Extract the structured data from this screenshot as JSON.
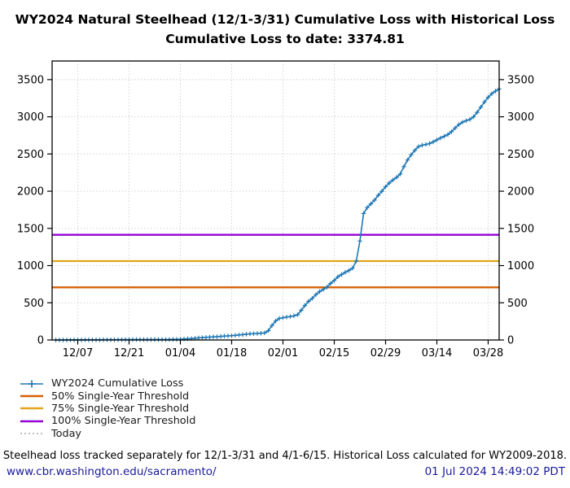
{
  "title": {
    "line1": "WY2024 Natural Steelhead (12/1-3/31) Cumulative Loss with Historical Loss",
    "line2": "Cumulative Loss to date: 3374.81"
  },
  "chart_data": {
    "type": "line",
    "title": "WY2024 Natural Steelhead (12/1-3/31) Cumulative Loss with Historical Loss",
    "subtitle": "Cumulative Loss to date: 3374.81",
    "cumulative_loss_to_date": 3374.81,
    "x_start_date": "12/01",
    "x_end_date": "03/31",
    "x_tick_labels": [
      "12/07",
      "12/21",
      "01/04",
      "01/18",
      "02/01",
      "02/15",
      "02/29",
      "03/14",
      "03/28"
    ],
    "x_tick_days": [
      6,
      20,
      34,
      48,
      62,
      76,
      90,
      104,
      118
    ],
    "y_ticks": [
      0,
      500,
      1000,
      1500,
      2000,
      2500,
      3000,
      3500
    ],
    "ylim": [
      0,
      3500
    ],
    "grid": true,
    "legend_position": "below-left",
    "series": [
      {
        "name": "WY2024 Cumulative Loss",
        "color": "#1f77b4",
        "marker": "plus",
        "day_values": [
          0,
          0,
          0,
          0,
          1,
          1,
          1,
          1,
          2,
          2,
          2,
          2,
          2,
          3,
          3,
          3,
          3,
          3,
          4,
          4,
          4,
          4,
          5,
          5,
          5,
          5,
          5,
          6,
          6,
          6,
          6,
          7,
          8,
          9,
          10,
          13,
          16,
          19,
          23,
          28,
          32,
          35,
          38,
          41,
          44,
          48,
          52,
          55,
          58,
          62,
          68,
          72,
          78,
          82,
          85,
          88,
          91,
          95,
          125,
          195,
          255,
          290,
          300,
          308,
          315,
          325,
          340,
          400,
          465,
          520,
          560,
          610,
          650,
          680,
          710,
          760,
          800,
          850,
          880,
          910,
          935,
          965,
          1060,
          1330,
          1700,
          1780,
          1830,
          1880,
          1945,
          2000,
          2060,
          2110,
          2150,
          2185,
          2230,
          2330,
          2420,
          2490,
          2550,
          2600,
          2618,
          2628,
          2640,
          2662,
          2690,
          2715,
          2738,
          2762,
          2800,
          2850,
          2895,
          2928,
          2948,
          2965,
          3000,
          3060,
          3130,
          3200,
          3262,
          3310,
          3345,
          3374.81
        ]
      }
    ],
    "thresholds": [
      {
        "name": "50% Single-Year Threshold",
        "value": 707,
        "color": "#d95f02"
      },
      {
        "name": "75% Single-Year Threshold",
        "value": 1060.5,
        "color": "#e0a51e"
      },
      {
        "name": "100% Single-Year Threshold",
        "value": 1414,
        "color": "#9400d3"
      }
    ],
    "today_line": {
      "label": "Today",
      "style": "dotted",
      "color": "#999999",
      "in_plot_range": false
    }
  },
  "legend": {
    "items": [
      {
        "label": "WY2024 Cumulative Loss",
        "color": "#1f77b4",
        "style": "plus-line"
      },
      {
        "label": "50% Single-Year Threshold",
        "color": "#d95f02",
        "style": "solid"
      },
      {
        "label": "75% Single-Year Threshold",
        "color": "#e0a51e",
        "style": "solid"
      },
      {
        "label": "100% Single-Year Threshold",
        "color": "#9400d3",
        "style": "solid"
      },
      {
        "label": "Today",
        "color": "#999999",
        "style": "dotted"
      }
    ]
  },
  "note": "Steelhead loss tracked separately for 12/1-3/31 and 4/1-6/15. Historical Loss calculated for WY2009-2018.",
  "footer": {
    "link": "www.cbr.washington.edu/sacramento/",
    "timestamp": "01 Jul 2024 14:49:02 PDT",
    "link_color": "#1a1a9b"
  }
}
